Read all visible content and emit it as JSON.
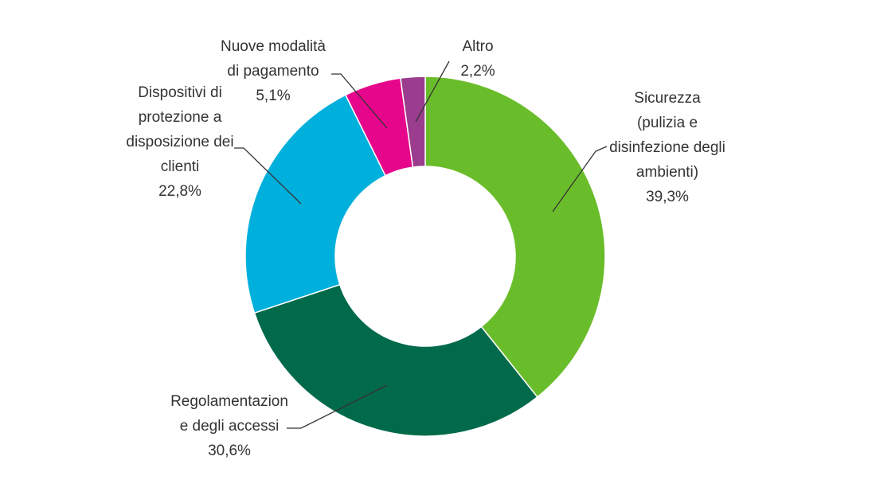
{
  "chart_data": {
    "type": "pie",
    "donut": true,
    "title": "",
    "legend": "none",
    "slices": [
      {
        "label_lines": [
          "Sicurezza",
          "(pulizia e",
          "disinfezione degli",
          "ambienti)"
        ],
        "value_label": "39,3%",
        "value": 39.3,
        "color": "#6abd2a"
      },
      {
        "label_lines": [
          "Regolamentazion",
          "e degli accessi"
        ],
        "value_label": "30,6%",
        "value": 30.6,
        "color": "#006a4a"
      },
      {
        "label_lines": [
          "Dispositivi di",
          "protezione a",
          "disposizione dei",
          "clienti"
        ],
        "value_label": "22,8%",
        "value": 22.8,
        "color": "#00b0dc"
      },
      {
        "label_lines": [
          "Nuove modalità",
          "di pagamento"
        ],
        "value_label": "5,1%",
        "value": 5.1,
        "color": "#e6068c"
      },
      {
        "label_lines": [
          "Altro"
        ],
        "value_label": "2,2%",
        "value": 2.2,
        "color": "#9b3d8e"
      }
    ]
  }
}
